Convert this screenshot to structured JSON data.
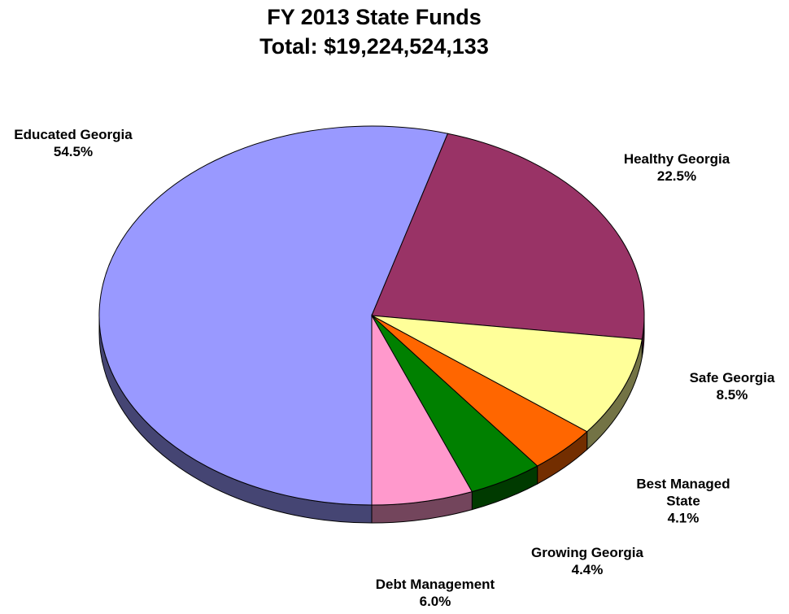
{
  "chart_data": {
    "type": "pie",
    "title": "FY 2013 State Funds",
    "subtitle": "Total: $19,224,524,133",
    "categories": [
      "Educated Georgia",
      "Healthy Georgia",
      "Safe Georgia",
      "Best Managed State",
      "Growing Georgia",
      "Debt Management"
    ],
    "values": [
      54.5,
      22.5,
      8.5,
      4.1,
      4.4,
      6.0
    ],
    "value_labels": [
      "54.5%",
      "22.5%",
      "8.5%",
      "4.1%",
      "4.4%",
      "6.0%"
    ],
    "colors": [
      "#9999ff",
      "#993366",
      "#ffff99",
      "#ff6600",
      "#008000",
      "#ff99cc"
    ]
  }
}
